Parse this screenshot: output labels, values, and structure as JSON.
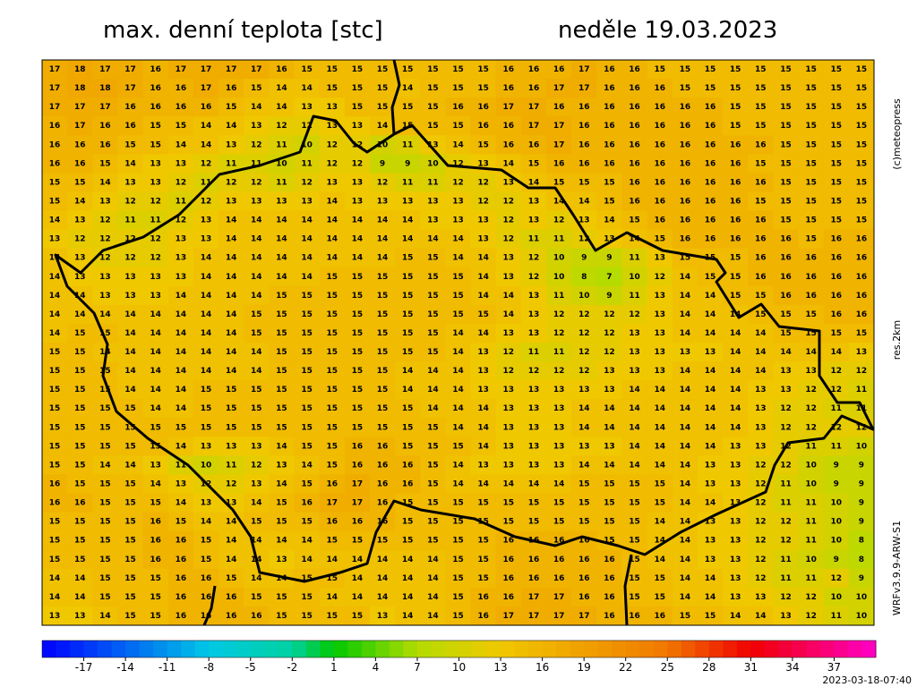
{
  "header": {
    "title": "max. denní teplota [stc]",
    "date": "neděle 19.03.2023"
  },
  "side_labels": {
    "copyright": "(c)meteopress",
    "resolution": "res.2km",
    "model": "WRFv3.9.9-ARW-S1"
  },
  "timestamp": "2023-03-18-07:40",
  "colorbar": {
    "lim": [
      -20,
      40
    ],
    "ticks": [
      -17,
      -14,
      -11,
      -8,
      -5,
      -2,
      1,
      4,
      7,
      10,
      13,
      16,
      19,
      22,
      25,
      28,
      31,
      34,
      37
    ],
    "stops": [
      {
        "value": -20,
        "color": "#0000ff"
      },
      {
        "value": -8,
        "color": "#00c8e6"
      },
      {
        "value": -2,
        "color": "#00d2a0"
      },
      {
        "value": 1,
        "color": "#00c800"
      },
      {
        "value": 7,
        "color": "#b4dc00"
      },
      {
        "value": 13,
        "color": "#f0c800"
      },
      {
        "value": 19,
        "color": "#f0a000"
      },
      {
        "value": 25,
        "color": "#f07800"
      },
      {
        "value": 31,
        "color": "#f00000"
      },
      {
        "value": 40,
        "color": "#ff00c8"
      }
    ]
  },
  "grid": {
    "rows": [
      [
        17,
        18,
        17,
        17,
        16,
        17,
        17,
        17,
        17,
        16,
        15,
        15,
        15,
        15,
        15,
        15,
        15,
        15,
        16,
        16,
        16,
        17,
        16,
        16,
        15,
        15,
        15,
        15,
        15,
        15,
        15,
        15,
        15
      ],
      [
        17,
        18,
        18,
        17,
        16,
        16,
        17,
        16,
        15,
        14,
        14,
        15,
        15,
        15,
        14,
        15,
        15,
        15,
        16,
        16,
        17,
        17,
        16,
        16,
        16,
        15,
        15,
        15,
        15,
        15,
        15,
        15,
        15
      ],
      [
        17,
        17,
        17,
        16,
        16,
        16,
        16,
        15,
        14,
        14,
        13,
        13,
        15,
        15,
        15,
        15,
        16,
        16,
        17,
        17,
        16,
        16,
        16,
        16,
        16,
        16,
        16,
        15,
        15,
        15,
        15,
        15,
        15
      ],
      [
        16,
        17,
        16,
        16,
        15,
        15,
        14,
        14,
        13,
        12,
        12,
        13,
        13,
        14,
        15,
        15,
        15,
        16,
        16,
        17,
        17,
        16,
        16,
        16,
        16,
        16,
        16,
        15,
        15,
        15,
        15,
        15,
        15
      ],
      [
        16,
        16,
        16,
        15,
        15,
        14,
        14,
        13,
        12,
        11,
        10,
        12,
        12,
        10,
        11,
        13,
        14,
        15,
        16,
        16,
        17,
        16,
        16,
        16,
        16,
        16,
        16,
        16,
        16,
        15,
        15,
        15,
        15
      ],
      [
        16,
        16,
        15,
        14,
        13,
        13,
        12,
        11,
        11,
        10,
        11,
        12,
        12,
        9,
        9,
        10,
        12,
        13,
        14,
        15,
        16,
        16,
        16,
        16,
        16,
        16,
        16,
        16,
        15,
        15,
        15,
        15,
        15
      ],
      [
        15,
        15,
        14,
        13,
        13,
        12,
        11,
        12,
        12,
        11,
        12,
        13,
        13,
        12,
        11,
        11,
        12,
        12,
        13,
        14,
        15,
        15,
        15,
        16,
        16,
        16,
        16,
        16,
        16,
        15,
        15,
        15,
        15
      ],
      [
        15,
        14,
        13,
        12,
        12,
        11,
        12,
        13,
        13,
        13,
        13,
        14,
        13,
        13,
        13,
        13,
        13,
        12,
        12,
        13,
        14,
        14,
        15,
        16,
        16,
        16,
        16,
        16,
        15,
        15,
        15,
        15,
        15
      ],
      [
        14,
        13,
        12,
        11,
        11,
        12,
        13,
        14,
        14,
        14,
        14,
        14,
        14,
        14,
        14,
        13,
        13,
        13,
        12,
        13,
        12,
        13,
        14,
        15,
        16,
        16,
        16,
        16,
        16,
        15,
        15,
        15,
        15
      ],
      [
        13,
        12,
        12,
        12,
        12,
        13,
        13,
        14,
        14,
        14,
        14,
        14,
        14,
        14,
        14,
        14,
        14,
        13,
        12,
        11,
        11,
        12,
        13,
        14,
        15,
        16,
        16,
        16,
        16,
        16,
        15,
        16,
        16
      ],
      [
        14,
        13,
        12,
        12,
        12,
        13,
        14,
        14,
        14,
        14,
        14,
        14,
        14,
        14,
        15,
        15,
        14,
        14,
        13,
        12,
        10,
        9,
        9,
        11,
        13,
        15,
        15,
        15,
        16,
        16,
        16,
        16,
        16
      ],
      [
        14,
        13,
        13,
        13,
        13,
        13,
        14,
        14,
        14,
        14,
        14,
        15,
        15,
        15,
        15,
        15,
        15,
        14,
        13,
        12,
        10,
        8,
        7,
        10,
        12,
        14,
        15,
        15,
        16,
        16,
        16,
        16,
        16
      ],
      [
        14,
        14,
        13,
        13,
        13,
        14,
        14,
        14,
        14,
        15,
        15,
        15,
        15,
        15,
        15,
        15,
        15,
        14,
        14,
        13,
        11,
        10,
        9,
        11,
        13,
        14,
        14,
        15,
        15,
        16,
        16,
        16,
        16
      ],
      [
        14,
        14,
        14,
        14,
        14,
        14,
        14,
        14,
        15,
        15,
        15,
        15,
        15,
        15,
        15,
        15,
        15,
        15,
        14,
        13,
        12,
        12,
        12,
        12,
        13,
        14,
        14,
        14,
        15,
        15,
        15,
        16,
        16
      ],
      [
        14,
        15,
        15,
        14,
        14,
        14,
        14,
        14,
        15,
        15,
        15,
        15,
        15,
        15,
        15,
        15,
        14,
        14,
        13,
        13,
        12,
        12,
        12,
        13,
        13,
        14,
        14,
        14,
        14,
        15,
        15,
        15,
        15
      ],
      [
        15,
        15,
        14,
        14,
        14,
        14,
        14,
        14,
        14,
        15,
        15,
        15,
        15,
        15,
        15,
        15,
        14,
        13,
        12,
        11,
        11,
        12,
        12,
        13,
        13,
        13,
        13,
        14,
        14,
        14,
        14,
        14,
        13
      ],
      [
        15,
        15,
        15,
        14,
        14,
        14,
        14,
        14,
        14,
        15,
        15,
        15,
        15,
        15,
        14,
        14,
        14,
        13,
        12,
        12,
        12,
        12,
        13,
        13,
        13,
        14,
        14,
        14,
        14,
        13,
        13,
        12,
        12
      ],
      [
        15,
        15,
        15,
        14,
        14,
        14,
        15,
        15,
        15,
        15,
        15,
        15,
        15,
        15,
        14,
        14,
        14,
        13,
        13,
        13,
        13,
        13,
        13,
        14,
        14,
        14,
        14,
        14,
        13,
        13,
        12,
        12,
        11
      ],
      [
        15,
        15,
        15,
        15,
        14,
        14,
        15,
        15,
        15,
        15,
        15,
        15,
        15,
        15,
        15,
        14,
        14,
        14,
        13,
        13,
        13,
        14,
        14,
        14,
        14,
        14,
        14,
        14,
        13,
        12,
        12,
        11,
        11
      ],
      [
        15,
        15,
        15,
        15,
        15,
        15,
        15,
        15,
        15,
        15,
        15,
        15,
        15,
        15,
        15,
        15,
        14,
        14,
        13,
        13,
        13,
        14,
        14,
        14,
        14,
        14,
        14,
        14,
        13,
        12,
        12,
        12,
        12
      ],
      [
        15,
        15,
        15,
        15,
        15,
        14,
        13,
        13,
        13,
        14,
        15,
        15,
        16,
        16,
        15,
        15,
        15,
        14,
        13,
        13,
        13,
        13,
        13,
        14,
        14,
        14,
        14,
        13,
        13,
        12,
        11,
        11,
        10
      ],
      [
        15,
        15,
        14,
        14,
        13,
        11,
        10,
        11,
        12,
        13,
        14,
        15,
        16,
        16,
        16,
        15,
        14,
        13,
        13,
        13,
        13,
        14,
        14,
        14,
        14,
        14,
        13,
        13,
        12,
        12,
        10,
        9,
        9
      ],
      [
        16,
        15,
        15,
        15,
        14,
        13,
        12,
        12,
        13,
        14,
        15,
        16,
        17,
        16,
        16,
        15,
        14,
        14,
        14,
        14,
        14,
        15,
        15,
        15,
        15,
        14,
        13,
        13,
        12,
        11,
        10,
        9,
        9
      ],
      [
        16,
        16,
        15,
        15,
        15,
        14,
        13,
        13,
        14,
        15,
        16,
        17,
        17,
        16,
        15,
        15,
        15,
        15,
        15,
        15,
        15,
        15,
        15,
        15,
        15,
        14,
        14,
        13,
        12,
        11,
        11,
        10,
        9
      ],
      [
        15,
        15,
        15,
        15,
        16,
        15,
        14,
        14,
        15,
        15,
        15,
        16,
        16,
        16,
        15,
        15,
        15,
        15,
        15,
        15,
        15,
        15,
        15,
        15,
        14,
        14,
        13,
        13,
        12,
        12,
        11,
        10,
        9
      ],
      [
        15,
        15,
        15,
        15,
        16,
        16,
        15,
        14,
        14,
        14,
        14,
        15,
        15,
        15,
        15,
        15,
        15,
        15,
        16,
        16,
        16,
        16,
        15,
        15,
        14,
        14,
        13,
        13,
        12,
        12,
        11,
        10,
        8
      ],
      [
        15,
        15,
        15,
        15,
        16,
        16,
        15,
        14,
        14,
        13,
        14,
        14,
        14,
        14,
        14,
        14,
        15,
        15,
        16,
        16,
        16,
        16,
        16,
        15,
        14,
        14,
        13,
        13,
        12,
        11,
        10,
        9,
        8
      ],
      [
        14,
        14,
        15,
        15,
        15,
        16,
        16,
        15,
        14,
        14,
        15,
        15,
        14,
        14,
        14,
        14,
        15,
        15,
        16,
        16,
        16,
        16,
        16,
        15,
        15,
        14,
        14,
        13,
        12,
        11,
        11,
        12,
        9
      ],
      [
        14,
        14,
        15,
        15,
        15,
        16,
        16,
        16,
        15,
        15,
        15,
        14,
        14,
        14,
        14,
        14,
        15,
        16,
        16,
        17,
        17,
        16,
        16,
        15,
        15,
        14,
        14,
        13,
        13,
        12,
        12,
        10,
        10
      ],
      [
        13,
        13,
        14,
        15,
        15,
        16,
        16,
        16,
        16,
        15,
        15,
        15,
        15,
        13,
        14,
        14,
        15,
        16,
        17,
        17,
        17,
        17,
        16,
        16,
        16,
        15,
        15,
        14,
        14,
        13,
        12,
        11,
        10
      ]
    ]
  }
}
